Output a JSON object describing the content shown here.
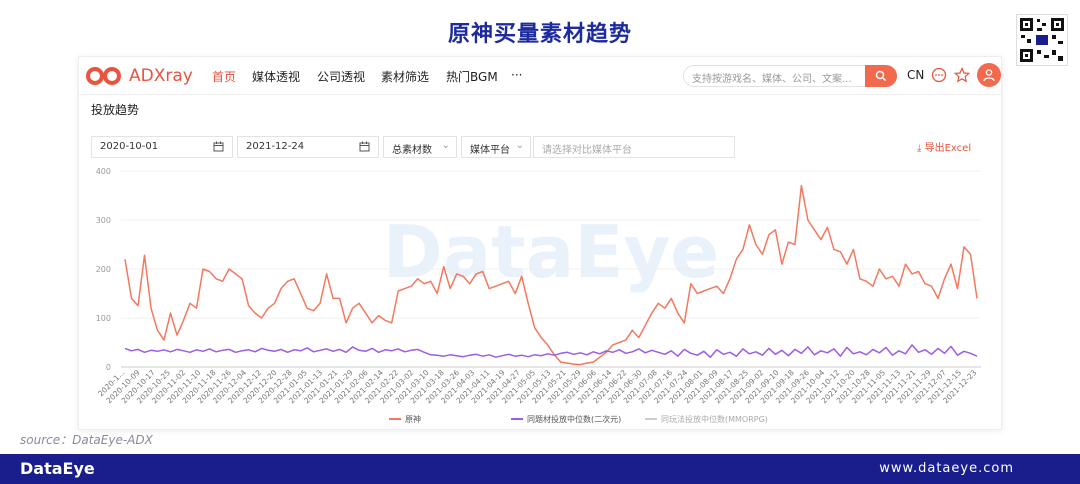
{
  "slide_title": "原神买量素材趋势",
  "app": {
    "logo_text": "ADXray",
    "nav": [
      "首页",
      "媒体透视",
      "公司透视",
      "素材筛选",
      "热门BGM",
      "···"
    ],
    "search_placeholder": "支持按游戏名、媒体、公司、文案...",
    "lang": "CN",
    "section_title": "投放趋势",
    "filters": {
      "start_date": "2020-10-01",
      "end_date": "2021-12-24",
      "metric": "总素材数",
      "media": "媒体平台",
      "compare_placeholder": "请选择对比媒体平台"
    },
    "export_label": "导出Excel",
    "watermark": "DataEye"
  },
  "source": "source：DataEye-ADX",
  "footer": {
    "logo": "DataEye",
    "url": "www.dataeye.com"
  },
  "colors": {
    "accent": "#f16a4e",
    "series1": "#f2795e",
    "series2": "#9b5de5",
    "series3": "#cccccc",
    "footer": "#1a1e8c",
    "title": "#1e2b9e"
  },
  "chart_data": {
    "type": "line",
    "x_ticks": [
      "2020-1...",
      "2020-10-09",
      "2020-10-17",
      "2020-10-25",
      "2020-11-02",
      "2020-11-10",
      "2020-11-18",
      "2020-11-26",
      "2020-12-04",
      "2020-12-12",
      "2020-12-20",
      "2020-12-28",
      "2021-01-05",
      "2021-01-13",
      "2021-01-21",
      "2021-01-29",
      "2021-02-06",
      "2021-02-14",
      "2021-02-22",
      "2021-03-02",
      "2021-03-10",
      "2021-03-18",
      "2021-03-26",
      "2021-04-03",
      "2021-04-11",
      "2021-04-19",
      "2021-04-27",
      "2021-05-05",
      "2021-05-13",
      "2021-05-21",
      "2021-05-29",
      "2021-06-06",
      "2021-06-14",
      "2021-06-22",
      "2021-06-30",
      "2021-07-08",
      "2021-07-16",
      "2021-07-24",
      "2021-08-01",
      "2021-08-09",
      "2021-08-17",
      "2021-08-25",
      "2021-09-02",
      "2021-09-10",
      "2021-09-18",
      "2021-09-26",
      "2021-10-04",
      "2021-10-12",
      "2021-10-20",
      "2021-10-28",
      "2021-11-05",
      "2021-11-13",
      "2021-11-21",
      "2021-11-29",
      "2021-12-07",
      "2021-12-15",
      "2021-12-23"
    ],
    "ylim": [
      0,
      400
    ],
    "y_ticks": [
      0,
      100,
      200,
      300,
      400
    ],
    "series": [
      {
        "name": "原神",
        "values": [
          220,
          140,
          125,
          228,
          120,
          75,
          55,
          110,
          65,
          95,
          130,
          120,
          200,
          195,
          180,
          175,
          200,
          190,
          180,
          125,
          110,
          100,
          120,
          130,
          160,
          175,
          180,
          150,
          120,
          115,
          130,
          190,
          140,
          140,
          90,
          120,
          130,
          110,
          90,
          105,
          95,
          90,
          155,
          160,
          165,
          180,
          170,
          175,
          150,
          205,
          160,
          190,
          185,
          170,
          190,
          195,
          160,
          165,
          170,
          175,
          150,
          185,
          130,
          80,
          60,
          45,
          25,
          10,
          8,
          6,
          5,
          8,
          10,
          20,
          30,
          45,
          50,
          55,
          75,
          60,
          85,
          110,
          130,
          120,
          140,
          110,
          90,
          170,
          150,
          155,
          160,
          165,
          150,
          180,
          220,
          240,
          290,
          250,
          230,
          270,
          280,
          210,
          255,
          250,
          370,
          300,
          280,
          260,
          285,
          240,
          235,
          210,
          240,
          180,
          175,
          165,
          200,
          180,
          185,
          165,
          210,
          190,
          195,
          170,
          165,
          140,
          180,
          210,
          160,
          245,
          230,
          140
        ]
      },
      {
        "name": "同题材投放中位数(二次元)",
        "values": [
          38,
          33,
          36,
          30,
          34,
          32,
          35,
          31,
          36,
          33,
          30,
          35,
          32,
          37,
          31,
          34,
          36,
          30,
          33,
          35,
          31,
          38,
          34,
          32,
          36,
          30,
          35,
          33,
          39,
          31,
          34,
          37,
          32,
          36,
          30,
          41,
          34,
          32,
          38,
          30,
          35,
          33,
          37,
          31,
          34,
          36,
          30,
          25,
          24,
          22,
          25,
          23,
          21,
          24,
          26,
          22,
          25,
          20,
          23,
          26,
          22,
          24,
          21,
          25,
          23,
          27,
          24,
          28,
          30,
          26,
          29,
          25,
          31,
          27,
          33,
          30,
          35,
          28,
          31,
          37,
          29,
          34,
          30,
          26,
          33,
          22,
          36,
          28,
          24,
          32,
          20,
          35,
          26,
          30,
          22,
          37,
          27,
          31,
          24,
          38,
          26,
          34,
          23,
          36,
          28,
          41,
          25,
          33,
          29,
          37,
          22,
          40,
          27,
          31,
          25,
          36,
          29,
          40,
          24,
          33,
          27,
          45,
          30,
          35,
          26,
          38,
          28,
          42,
          24,
          32,
          28,
          22
        ]
      },
      {
        "name": "同玩法投放中位数(MMORPG)",
        "values": []
      }
    ]
  }
}
